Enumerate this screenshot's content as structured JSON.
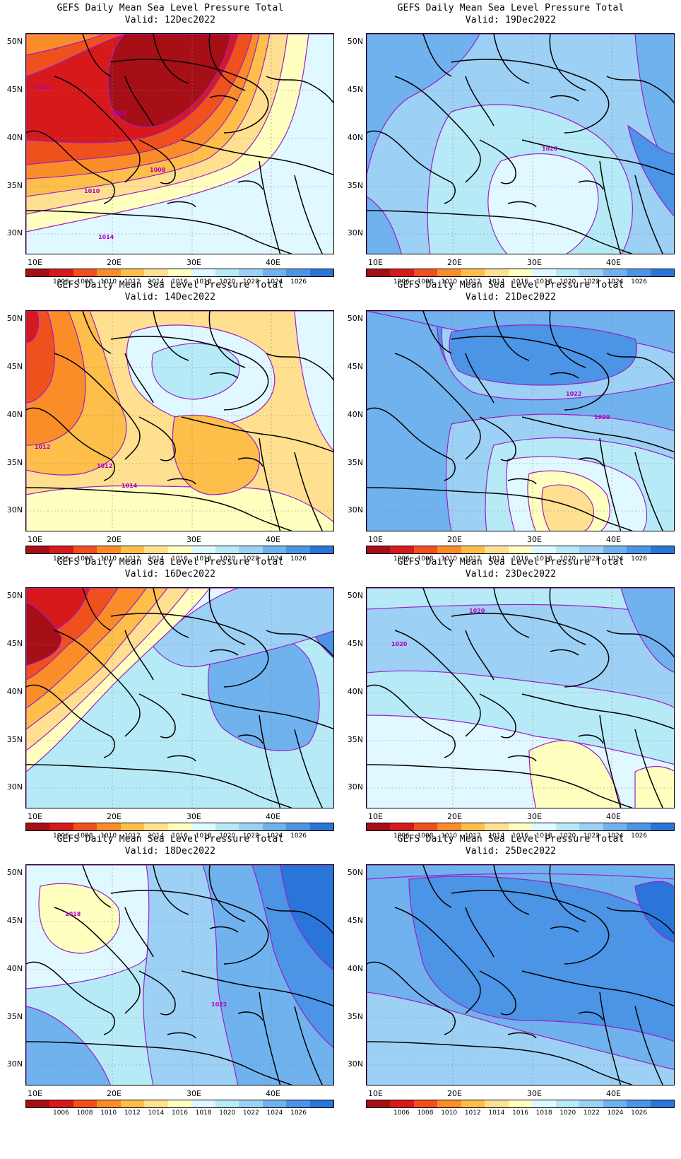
{
  "colorbar": {
    "colors": [
      "#a50f15",
      "#d7191c",
      "#f0511c",
      "#fb8d29",
      "#fdbe4a",
      "#fee090",
      "#ffffbf",
      "#e0f8ff",
      "#b7eaf7",
      "#9dd0f5",
      "#6fb2ee",
      "#4b94e6",
      "#2a75d9",
      "#1e5fc8"
    ],
    "labels": [
      "1006",
      "1008",
      "1010",
      "1012",
      "1014",
      "1016",
      "1018",
      "1020",
      "1022",
      "1024",
      "1026"
    ]
  },
  "axes": {
    "lat_labels": [
      "50N",
      "45N",
      "40N",
      "35N",
      "30N"
    ],
    "lon_labels": [
      "10E",
      "20E",
      "30E",
      "40E"
    ]
  },
  "panels": [
    {
      "title": "GEFS Daily Mean Sea Level Pressure Total",
      "valid": "Valid: 12Dec2022",
      "theme": "low",
      "contour_labels": [
        "1012",
        "1008",
        "1008",
        "1010",
        "1014"
      ]
    },
    {
      "title": "GEFS Daily Mean Sea Level Pressure Total",
      "valid": "Valid: 19Dec2022",
      "theme": "high",
      "contour_labels": [
        "1020"
      ]
    },
    {
      "title": "GEFS Daily Mean Sea Level Pressure Total",
      "valid": "Valid: 14Dec2022",
      "theme": "mid",
      "contour_labels": [
        "1012",
        "1012",
        "1014"
      ]
    },
    {
      "title": "GEFS Daily Mean Sea Level Pressure Total",
      "valid": "Valid: 21Dec2022",
      "theme": "high2",
      "contour_labels": [
        "1022",
        "1020"
      ]
    },
    {
      "title": "GEFS Daily Mean Sea Level Pressure Total",
      "valid": "Valid: 16Dec2022",
      "theme": "west",
      "contour_labels": []
    },
    {
      "title": "GEFS Daily Mean Sea Level Pressure Total",
      "valid": "Valid: 23Dec2022",
      "theme": "flat",
      "contour_labels": [
        "1020",
        "1020"
      ]
    },
    {
      "title": "GEFS Daily Mean Sea Level Pressure Total",
      "valid": "Valid: 18Dec2022",
      "theme": "blue",
      "contour_labels": [
        "1018",
        "1022"
      ]
    },
    {
      "title": "GEFS Daily Mean Sea Level Pressure Total",
      "valid": "Valid: 25Dec2022",
      "theme": "blue2",
      "contour_labels": []
    }
  ]
}
